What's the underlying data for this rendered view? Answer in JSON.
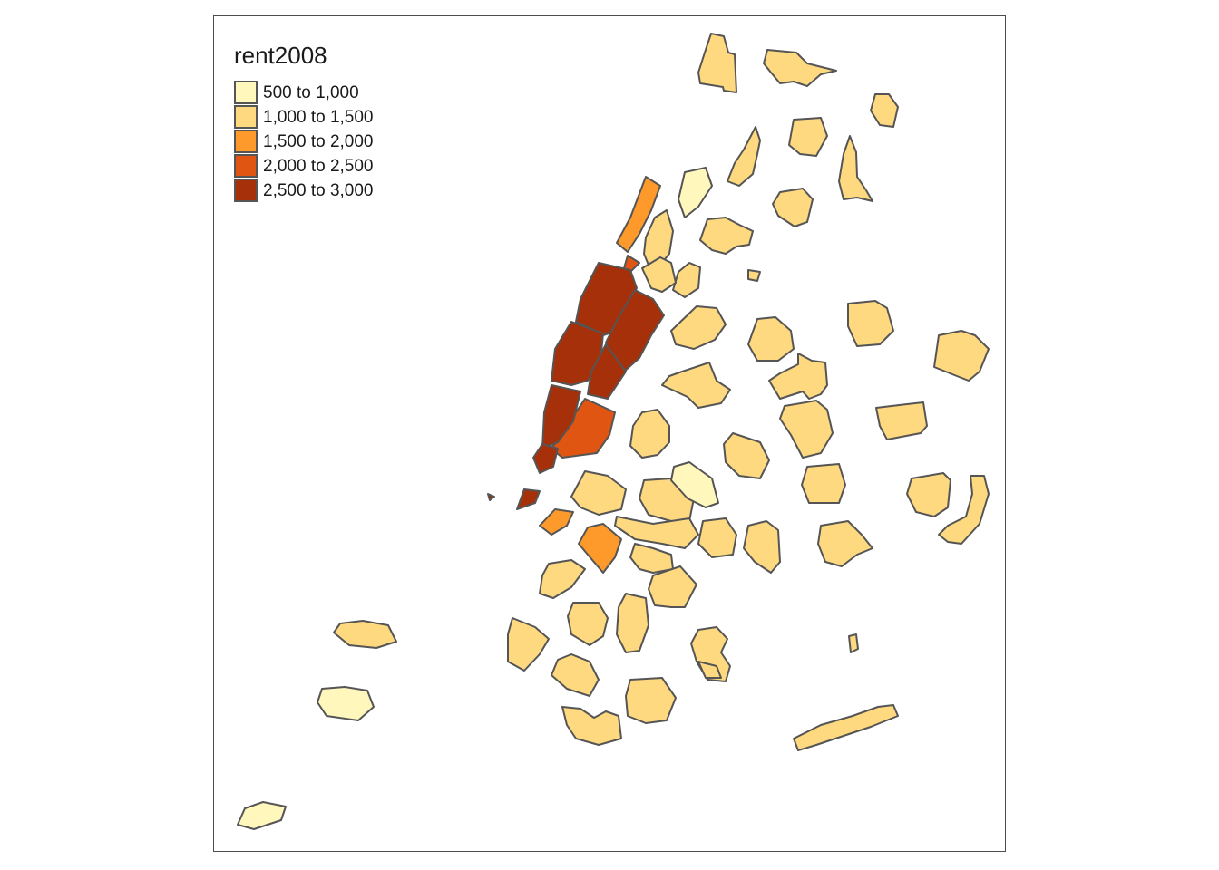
{
  "legend": {
    "title": "rent2008",
    "items": [
      {
        "label": "500 to 1,000",
        "color": "#fff7bc"
      },
      {
        "label": "1,000 to 1,500",
        "color": "#fed97f"
      },
      {
        "label": "1,500 to 2,000",
        "color": "#fd9a2b"
      },
      {
        "label": "2,000 to 2,500",
        "color": "#e05512"
      },
      {
        "label": "2,500 to 3,000",
        "color": "#a6300a"
      }
    ]
  },
  "colors": {
    "border": "#555555",
    "background": "#ffffff",
    "frame": "#4d4d4d"
  }
}
